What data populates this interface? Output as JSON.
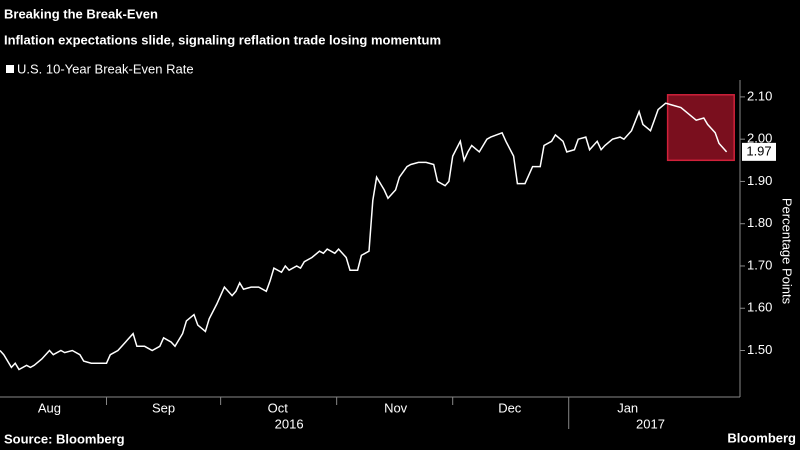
{
  "chart_data": {
    "type": "line",
    "title": "Breaking the Break-Even",
    "subtitle": "Inflation expectations slide, signaling reflation trade losing momentum",
    "y_axis_label": "Percentage Points",
    "source": "Source: Bloomberg",
    "brand": "Bloomberg",
    "series": [
      {
        "name": "U.S. 10-Year Break-Even Rate",
        "color": "#ffffff",
        "x": [
          3,
          4,
          6,
          7,
          8,
          10,
          11,
          12,
          14,
          16,
          17,
          19,
          20,
          22,
          24,
          25,
          27,
          29,
          31,
          32,
          34,
          36,
          38,
          39,
          41,
          43,
          45,
          46,
          48,
          49,
          51,
          52,
          54,
          55,
          57,
          58,
          60,
          61,
          62,
          64,
          65,
          66,
          67,
          69,
          71,
          73,
          74,
          75,
          77,
          78,
          79,
          81,
          82,
          83,
          85,
          87,
          88,
          89,
          91,
          92,
          94,
          95,
          97,
          98,
          100,
          101,
          102,
          104,
          105,
          107,
          108,
          110,
          111,
          113,
          115,
          117,
          118,
          120,
          121,
          122,
          124,
          125,
          126,
          127,
          129,
          131,
          132,
          135,
          136,
          138,
          139,
          141,
          143,
          145,
          146,
          148,
          149,
          151,
          152,
          154,
          155,
          157,
          158,
          160,
          161,
          162,
          164,
          166,
          167,
          169,
          171,
          172,
          174,
          175,
          176,
          178,
          180,
          182,
          184,
          186,
          188,
          189,
          191,
          192,
          194
        ],
        "values": [
          1.5,
          1.49,
          1.46,
          1.47,
          1.455,
          1.465,
          1.46,
          1.465,
          1.48,
          1.5,
          1.49,
          1.5,
          1.495,
          1.5,
          1.49,
          1.475,
          1.47,
          1.47,
          1.47,
          1.49,
          1.5,
          1.52,
          1.54,
          1.51,
          1.51,
          1.5,
          1.51,
          1.53,
          1.52,
          1.51,
          1.54,
          1.57,
          1.585,
          1.56,
          1.545,
          1.575,
          1.61,
          1.63,
          1.65,
          1.63,
          1.64,
          1.66,
          1.645,
          1.65,
          1.65,
          1.64,
          1.665,
          1.695,
          1.685,
          1.7,
          1.69,
          1.7,
          1.695,
          1.71,
          1.72,
          1.735,
          1.73,
          1.74,
          1.73,
          1.74,
          1.72,
          1.69,
          1.69,
          1.725,
          1.735,
          1.855,
          1.91,
          1.88,
          1.86,
          1.88,
          1.91,
          1.935,
          1.94,
          1.945,
          1.945,
          1.94,
          1.9,
          1.89,
          1.9,
          1.96,
          1.995,
          1.95,
          1.97,
          1.985,
          1.97,
          2.0,
          2.005,
          2.015,
          1.995,
          1.96,
          1.895,
          1.895,
          1.935,
          1.935,
          1.985,
          1.995,
          2.01,
          1.995,
          1.97,
          1.975,
          2.0,
          2.005,
          1.975,
          1.995,
          1.975,
          1.985,
          2.0,
          2.005,
          2.0,
          2.02,
          2.065,
          2.035,
          2.02,
          2.045,
          2.07,
          2.085,
          2.08,
          2.075,
          2.06,
          2.045,
          2.05,
          2.035,
          2.015,
          1.99,
          1.97
        ]
      }
    ],
    "end_label": "1.97",
    "xlim": [
      3,
      197
    ],
    "xticks": [
      {
        "value": 16,
        "label": "Aug"
      },
      {
        "value": 46,
        "label": "Sep"
      },
      {
        "value": 76,
        "label": "Oct"
      },
      {
        "value": 107,
        "label": "Nov"
      },
      {
        "value": 137,
        "label": "Dec"
      },
      {
        "value": 168,
        "label": "Jan"
      }
    ],
    "year_labels": [
      {
        "value": 79,
        "label": "2016"
      },
      {
        "value": 174,
        "label": "2017"
      }
    ],
    "ylim": [
      1.39,
      2.14
    ],
    "yticks": [
      {
        "value": 1.5,
        "label": "1.50"
      },
      {
        "value": 1.6,
        "label": "1.60"
      },
      {
        "value": 1.7,
        "label": "1.70"
      },
      {
        "value": 1.8,
        "label": "1.80"
      },
      {
        "value": 1.9,
        "label": "1.90"
      },
      {
        "value": 2.0,
        "label": "2.00"
      },
      {
        "value": 2.1,
        "label": "2.10"
      }
    ],
    "highlight": {
      "xlim": [
        178.5,
        196
      ],
      "ylim": [
        1.95,
        2.105
      ],
      "color": "#7a0f1e",
      "border": "#d0213a"
    }
  }
}
